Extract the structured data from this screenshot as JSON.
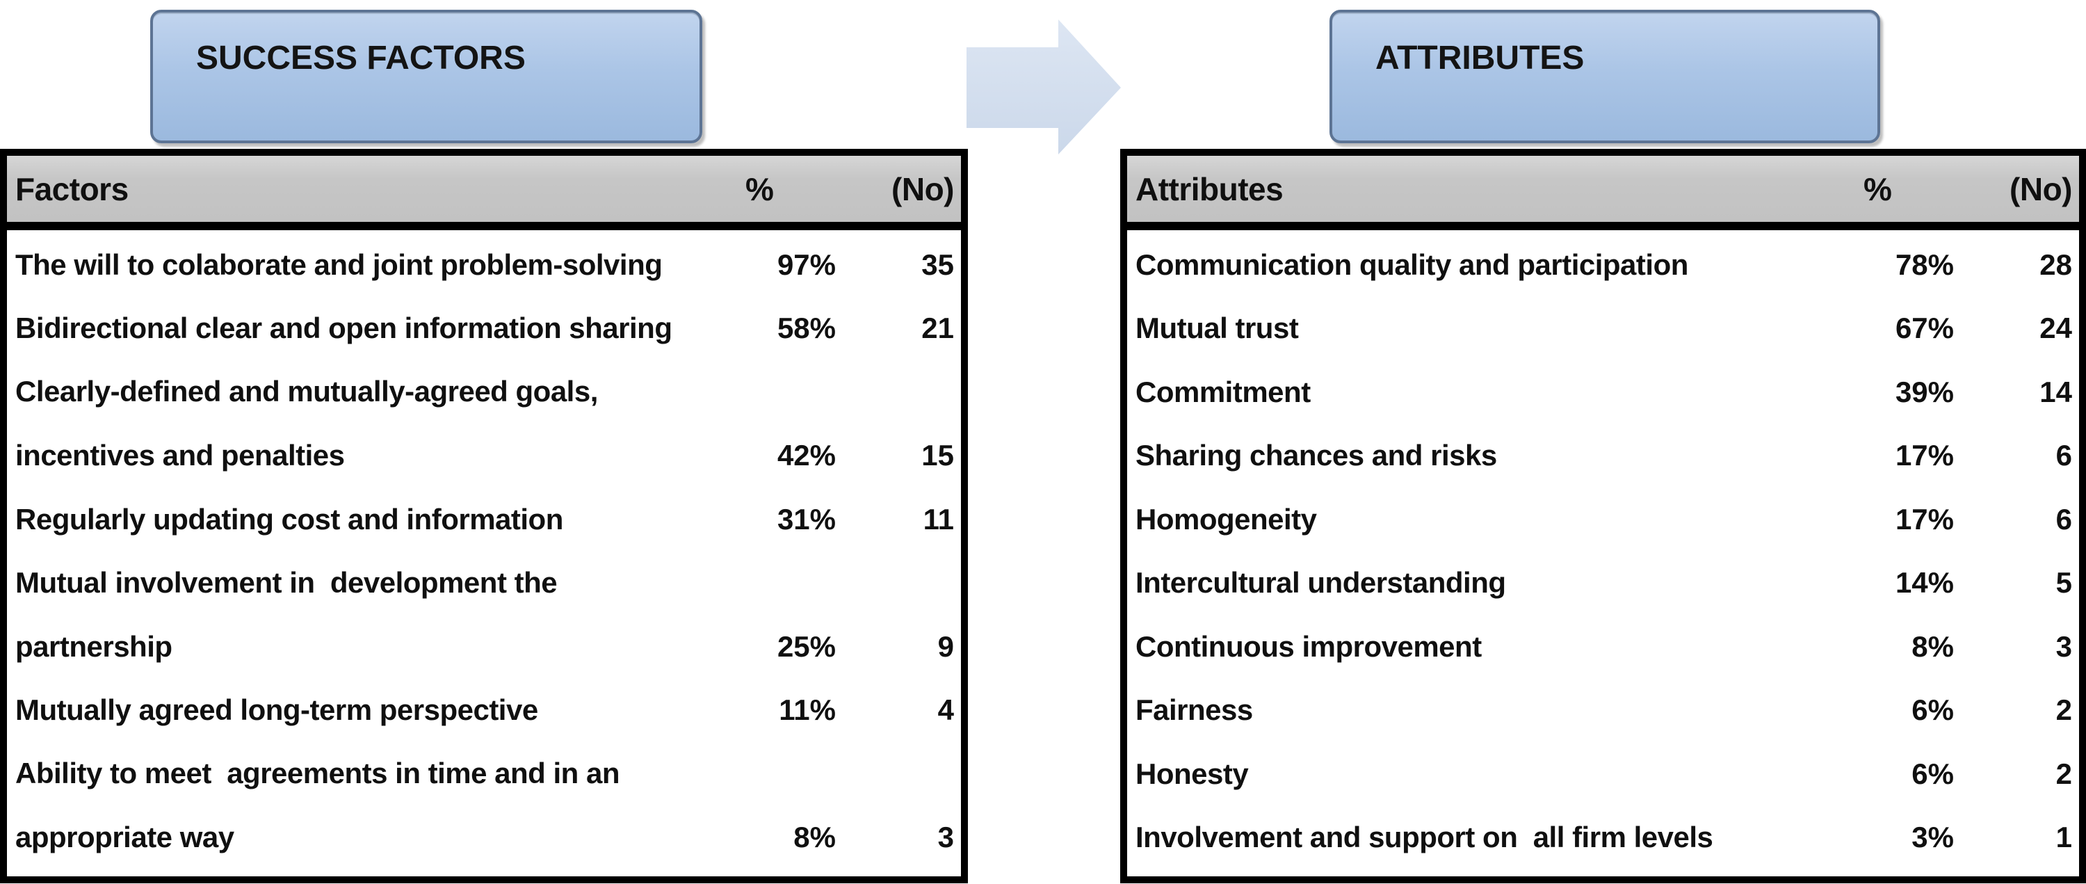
{
  "banners": {
    "left": "SUCCESS FACTORS",
    "right": "ATTRIBUTES"
  },
  "arrow": {
    "direction": "right",
    "fill_top": "#dde6f3",
    "fill_bottom": "#cbd8ea"
  },
  "colors": {
    "banner_fill_top": "#c1d4ee",
    "banner_fill_bottom": "#9bb9de",
    "banner_border": "#5d7494",
    "table_header_bg": "#c6c6c6",
    "table_border": "#000000",
    "text": "#101010"
  },
  "left_table": {
    "columns": {
      "label": "Factors",
      "pct": "%",
      "no": "(No)"
    },
    "rows": [
      {
        "label": [
          "The will to colaborate and joint problem-solving"
        ],
        "pct": "97%",
        "no": "35"
      },
      {
        "label": [
          "Bidirectional clear and open information sharing"
        ],
        "pct": "58%",
        "no": "21"
      },
      {
        "label": [
          "Clearly-defined and mutually-agreed goals,",
          "incentives and penalties"
        ],
        "pct": "42%",
        "no": "15"
      },
      {
        "label": [
          "Regularly updating cost and information"
        ],
        "pct": "31%",
        "no": "11"
      },
      {
        "label": [
          "Mutual involvement in  development the",
          "partnership"
        ],
        "pct": "25%",
        "no": "9"
      },
      {
        "label": [
          "Mutually agreed long-term perspective"
        ],
        "pct": "11%",
        "no": "4"
      },
      {
        "label": [
          "Ability to meet  agreements in time and in an",
          "appropriate way"
        ],
        "pct": "8%",
        "no": "3"
      }
    ]
  },
  "right_table": {
    "columns": {
      "label": "Attributes",
      "pct": "%",
      "no": "(No)"
    },
    "rows": [
      {
        "label": [
          "Communication quality and participation"
        ],
        "pct": "78%",
        "no": "28"
      },
      {
        "label": [
          "Mutual trust"
        ],
        "pct": "67%",
        "no": "24"
      },
      {
        "label": [
          "Commitment"
        ],
        "pct": "39%",
        "no": "14"
      },
      {
        "label": [
          "Sharing chances and risks"
        ],
        "pct": "17%",
        "no": "6"
      },
      {
        "label": [
          "Homogeneity"
        ],
        "pct": "17%",
        "no": "6"
      },
      {
        "label": [
          "Intercultural understanding"
        ],
        "pct": "14%",
        "no": "5"
      },
      {
        "label": [
          "Continuous improvement"
        ],
        "pct": "8%",
        "no": "3"
      },
      {
        "label": [
          "Fairness"
        ],
        "pct": "6%",
        "no": "2"
      },
      {
        "label": [
          "Honesty"
        ],
        "pct": "6%",
        "no": "2"
      },
      {
        "label": [
          "Involvement and support on  all firm levels"
        ],
        "pct": "3%",
        "no": "1"
      }
    ]
  }
}
